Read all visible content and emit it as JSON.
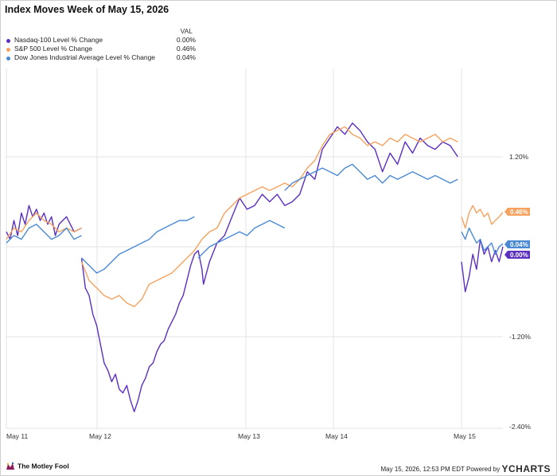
{
  "title": "Index Moves Week of May 15, 2026",
  "legend": {
    "value_header": "VAL",
    "items": [
      {
        "name": "Nasdaq-100 Level % Change",
        "value": "0.00%",
        "color": "#5b2fc0"
      },
      {
        "name": "S&P 500 Level % Change",
        "value": "0.46%",
        "color": "#f6a25e"
      },
      {
        "name": "Dow Jones Industrial Average Level % Change",
        "value": "0.04%",
        "color": "#4a8ad4"
      }
    ]
  },
  "chart_data": {
    "type": "line",
    "x_ticks": [
      "May 11",
      "May 12",
      "May 13",
      "May 14",
      "May 15"
    ],
    "y_ticks": [
      "1.20%",
      "-1.20%",
      "-2.40%"
    ],
    "ylim": [
      -2.4,
      2.4
    ],
    "grid": true,
    "end_labels": [
      {
        "series": "S&P 500 Level % Change",
        "value": 0.46,
        "label": "0.46%"
      },
      {
        "series": "Dow Jones Industrial Average Level % Change",
        "value": 0.04,
        "label": "0.04%"
      },
      {
        "series": "Nasdaq-100 Level % Change",
        "value": 0.0,
        "label": "0.00%"
      }
    ],
    "series": [
      {
        "name": "Nasdaq-100 Level % Change",
        "color": "#5b2fc0",
        "segments": [
          [
            [
              0,
              0.2
            ],
            [
              0.05,
              0.1
            ],
            [
              0.1,
              0.35
            ],
            [
              0.15,
              0.15
            ],
            [
              0.2,
              0.45
            ],
            [
              0.25,
              0.3
            ],
            [
              0.3,
              0.55
            ],
            [
              0.35,
              0.4
            ],
            [
              0.4,
              0.5
            ],
            [
              0.45,
              0.35
            ],
            [
              0.5,
              0.45
            ],
            [
              0.55,
              0.3
            ],
            [
              0.6,
              0.4
            ],
            [
              0.65,
              0.15
            ],
            [
              0.7,
              0.3
            ],
            [
              0.8,
              0.4
            ],
            [
              0.9,
              0.2
            ],
            [
              1,
              0.25
            ]
          ],
          [
            [
              1,
              -0.15
            ],
            [
              1.05,
              -0.55
            ],
            [
              1.1,
              -0.65
            ],
            [
              1.15,
              -0.9
            ],
            [
              1.2,
              -1.05
            ],
            [
              1.25,
              -1.3
            ],
            [
              1.3,
              -1.55
            ],
            [
              1.35,
              -1.65
            ],
            [
              1.4,
              -1.8
            ],
            [
              1.45,
              -1.7
            ],
            [
              1.5,
              -1.9
            ],
            [
              1.55,
              -1.95
            ],
            [
              1.6,
              -1.85
            ],
            [
              1.65,
              -2.05
            ],
            [
              1.7,
              -2.2
            ],
            [
              1.75,
              -2.05
            ],
            [
              1.8,
              -1.85
            ],
            [
              1.85,
              -1.75
            ],
            [
              1.9,
              -1.6
            ],
            [
              1.95,
              -1.55
            ],
            [
              2,
              -1.4
            ],
            [
              2.05,
              -1.3
            ],
            [
              2.1,
              -1.25
            ],
            [
              2.15,
              -1.1
            ],
            [
              2.2,
              -1.0
            ],
            [
              2.25,
              -0.9
            ],
            [
              2.3,
              -0.75
            ],
            [
              2.35,
              -0.65
            ],
            [
              2.4,
              -0.45
            ],
            [
              2.45,
              -0.25
            ],
            [
              2.5,
              -0.1
            ],
            [
              2.55,
              -0.05
            ],
            [
              2.6,
              -0.3
            ],
            [
              2.62,
              -0.5
            ],
            [
              2.7,
              -0.2
            ],
            [
              2.8,
              0.05
            ],
            [
              2.9,
              0.15
            ],
            [
              3,
              0.4
            ],
            [
              3.1,
              0.65
            ],
            [
              3.2,
              0.5
            ],
            [
              3.3,
              0.55
            ],
            [
              3.4,
              0.7
            ],
            [
              3.5,
              0.6
            ],
            [
              3.6,
              0.7
            ],
            [
              3.7,
              0.55
            ],
            [
              3.8,
              0.6
            ],
            [
              3.9,
              0.7
            ],
            [
              4,
              1.0
            ],
            [
              4.1,
              0.9
            ],
            [
              4.2,
              1.3
            ],
            [
              4.3,
              1.45
            ],
            [
              4.4,
              1.6
            ],
            [
              4.5,
              1.5
            ],
            [
              4.6,
              1.65
            ],
            [
              4.7,
              1.55
            ],
            [
              4.8,
              1.4
            ],
            [
              4.9,
              1.3
            ],
            [
              5,
              1.0
            ],
            [
              5.1,
              1.25
            ],
            [
              5.2,
              1.1
            ],
            [
              5.3,
              1.4
            ],
            [
              5.4,
              1.25
            ],
            [
              5.5,
              1.45
            ],
            [
              5.6,
              1.35
            ],
            [
              5.7,
              1.3
            ],
            [
              5.8,
              1.4
            ],
            [
              5.9,
              1.35
            ],
            [
              6,
              1.2
            ]
          ],
          [
            [
              6.05,
              -0.2
            ],
            [
              6.1,
              -0.6
            ],
            [
              6.15,
              -0.4
            ],
            [
              6.2,
              -0.1
            ],
            [
              6.25,
              -0.3
            ],
            [
              6.3,
              0.1
            ],
            [
              6.35,
              -0.1
            ],
            [
              6.4,
              0.0
            ],
            [
              6.45,
              -0.2
            ],
            [
              6.5,
              -0.05
            ],
            [
              6.55,
              -0.2
            ],
            [
              6.6,
              0.0
            ]
          ]
        ]
      },
      {
        "name": "S&P 500 Level % Change",
        "color": "#f6a25e",
        "segments": [
          [
            [
              0,
              0.1
            ],
            [
              0.1,
              0.25
            ],
            [
              0.2,
              0.2
            ],
            [
              0.3,
              0.35
            ],
            [
              0.4,
              0.45
            ],
            [
              0.5,
              0.35
            ],
            [
              0.6,
              0.3
            ],
            [
              0.7,
              0.2
            ],
            [
              0.8,
              0.25
            ],
            [
              0.9,
              0.2
            ],
            [
              1,
              0.25
            ]
          ],
          [
            [
              1,
              -0.2
            ],
            [
              1.1,
              -0.45
            ],
            [
              1.2,
              -0.55
            ],
            [
              1.3,
              -0.65
            ],
            [
              1.4,
              -0.7
            ],
            [
              1.5,
              -0.65
            ],
            [
              1.6,
              -0.75
            ],
            [
              1.7,
              -0.8
            ],
            [
              1.8,
              -0.7
            ],
            [
              1.9,
              -0.5
            ],
            [
              2,
              -0.45
            ],
            [
              2.1,
              -0.4
            ],
            [
              2.2,
              -0.35
            ],
            [
              2.3,
              -0.25
            ],
            [
              2.4,
              -0.15
            ],
            [
              2.5,
              -0.05
            ],
            [
              2.6,
              0.1
            ],
            [
              2.7,
              0.2
            ],
            [
              2.8,
              0.25
            ],
            [
              2.9,
              0.45
            ],
            [
              3,
              0.55
            ],
            [
              3.1,
              0.65
            ],
            [
              3.2,
              0.7
            ],
            [
              3.3,
              0.75
            ],
            [
              3.4,
              0.8
            ],
            [
              3.5,
              0.75
            ],
            [
              3.6,
              0.8
            ],
            [
              3.7,
              0.85
            ],
            [
              3.8,
              0.8
            ],
            [
              3.9,
              0.9
            ],
            [
              4,
              1.05
            ],
            [
              4.1,
              1.15
            ],
            [
              4.2,
              1.35
            ],
            [
              4.3,
              1.5
            ],
            [
              4.4,
              1.55
            ],
            [
              4.5,
              1.6
            ],
            [
              4.6,
              1.5
            ],
            [
              4.7,
              1.45
            ],
            [
              4.8,
              1.35
            ],
            [
              4.9,
              1.4
            ],
            [
              5,
              1.35
            ],
            [
              5.1,
              1.45
            ],
            [
              5.2,
              1.4
            ],
            [
              5.3,
              1.5
            ],
            [
              5.4,
              1.45
            ],
            [
              5.5,
              1.4
            ],
            [
              5.6,
              1.45
            ],
            [
              5.7,
              1.5
            ],
            [
              5.8,
              1.4
            ],
            [
              5.9,
              1.45
            ],
            [
              6,
              1.4
            ]
          ],
          [
            [
              6.05,
              0.4
            ],
            [
              6.1,
              0.25
            ],
            [
              6.15,
              0.45
            ],
            [
              6.2,
              0.55
            ],
            [
              6.25,
              0.45
            ],
            [
              6.3,
              0.5
            ],
            [
              6.35,
              0.4
            ],
            [
              6.4,
              0.45
            ],
            [
              6.45,
              0.3
            ],
            [
              6.5,
              0.35
            ],
            [
              6.55,
              0.4
            ],
            [
              6.6,
              0.46
            ]
          ]
        ]
      },
      {
        "name": "Dow Jones Industrial Average Level % Change",
        "color": "#4a8ad4",
        "segments": [
          [
            [
              0,
              0.05
            ],
            [
              0.1,
              0.15
            ],
            [
              0.2,
              0.1
            ],
            [
              0.3,
              0.25
            ],
            [
              0.4,
              0.3
            ],
            [
              0.5,
              0.2
            ],
            [
              0.6,
              0.1
            ],
            [
              0.7,
              0.15
            ],
            [
              0.8,
              0.25
            ],
            [
              0.9,
              0.1
            ],
            [
              1,
              0.15
            ]
          ],
          [
            [
              1,
              -0.15
            ],
            [
              1.1,
              -0.25
            ],
            [
              1.2,
              -0.35
            ],
            [
              1.3,
              -0.3
            ],
            [
              1.4,
              -0.2
            ],
            [
              1.5,
              -0.1
            ],
            [
              1.6,
              -0.05
            ],
            [
              1.7,
              0.0
            ],
            [
              1.8,
              0.05
            ],
            [
              1.9,
              0.1
            ],
            [
              2,
              0.2
            ],
            [
              2.1,
              0.25
            ],
            [
              2.2,
              0.3
            ],
            [
              2.3,
              0.35
            ],
            [
              2.4,
              0.35
            ],
            [
              2.5,
              0.4
            ]
          ],
          [
            [
              2.55,
              -0.15
            ],
            [
              2.6,
              -0.1
            ],
            [
              2.7,
              0.0
            ],
            [
              2.8,
              0.05
            ],
            [
              2.9,
              0.1
            ],
            [
              3,
              0.15
            ],
            [
              3.1,
              0.2
            ],
            [
              3.2,
              0.15
            ],
            [
              3.3,
              0.25
            ],
            [
              3.4,
              0.3
            ],
            [
              3.5,
              0.35
            ],
            [
              3.6,
              0.3
            ],
            [
              3.7,
              0.25
            ]
          ],
          [
            [
              3.7,
              0.75
            ],
            [
              3.8,
              0.85
            ],
            [
              3.9,
              0.9
            ],
            [
              4,
              0.95
            ],
            [
              4.1,
              1.0
            ],
            [
              4.2,
              1.05
            ],
            [
              4.3,
              1.0
            ],
            [
              4.4,
              0.95
            ],
            [
              4.5,
              1.05
            ],
            [
              4.6,
              1.1
            ],
            [
              4.7,
              1.0
            ],
            [
              4.8,
              0.9
            ],
            [
              4.9,
              0.95
            ],
            [
              5,
              0.85
            ],
            [
              5.1,
              0.95
            ],
            [
              5.2,
              0.9
            ],
            [
              5.3,
              0.95
            ],
            [
              5.4,
              1.0
            ],
            [
              5.5,
              0.95
            ],
            [
              5.6,
              0.9
            ],
            [
              5.7,
              0.95
            ],
            [
              5.8,
              0.9
            ],
            [
              5.9,
              0.85
            ],
            [
              6,
              0.9
            ]
          ],
          [
            [
              6.05,
              0.2
            ],
            [
              6.1,
              0.1
            ],
            [
              6.15,
              0.25
            ],
            [
              6.2,
              0.15
            ],
            [
              6.25,
              0.05
            ],
            [
              6.3,
              0.1
            ],
            [
              6.35,
              -0.05
            ],
            [
              6.4,
              0.0
            ],
            [
              6.45,
              0.05
            ],
            [
              6.5,
              -0.1
            ],
            [
              6.55,
              0.0
            ],
            [
              6.6,
              0.04
            ]
          ]
        ]
      }
    ]
  },
  "footer": {
    "brand": "The Motley Fool",
    "timestamp": "May 15, 2026, 12:53 PM EDT",
    "powered_by": "Powered by",
    "ycharts": "CHARTS",
    "ycharts_y": "Y"
  }
}
